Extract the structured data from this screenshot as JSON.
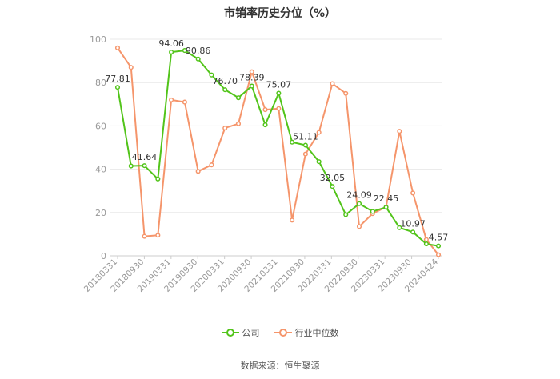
{
  "title": "市销率历史分位（%）",
  "source": "数据来源：恒生聚源",
  "colors": {
    "company": "#52c41a",
    "industry": "#f5956b",
    "grid": "#e8e8e8",
    "axis": "#999999"
  },
  "chart_data": {
    "type": "line",
    "title": "市销率历史分位（%）",
    "ylim": [
      0,
      100
    ],
    "yticks": [
      0,
      20,
      40,
      60,
      80,
      100
    ],
    "grid": true,
    "legend_position": "bottom",
    "x_tick_labels": [
      "20180331",
      "20180930",
      "20190331",
      "20190930",
      "20200331",
      "20200930",
      "20210331",
      "20210930",
      "20220331",
      "20220930",
      "20230331",
      "20230930",
      "20240424"
    ],
    "series": [
      {
        "name": "公司",
        "color": "#52c41a",
        "points": [
          {
            "x": 0,
            "y": 77.81
          },
          {
            "x": 1,
            "y": 41.5
          },
          {
            "x": 2,
            "y": 41.64
          },
          {
            "x": 3,
            "y": 35.5
          },
          {
            "x": 4,
            "y": 94.06
          },
          {
            "x": 5,
            "y": 94.8
          },
          {
            "x": 6,
            "y": 90.86
          },
          {
            "x": 7,
            "y": 83.5
          },
          {
            "x": 8,
            "y": 76.7
          },
          {
            "x": 9,
            "y": 73.0
          },
          {
            "x": 10,
            "y": 78.39
          },
          {
            "x": 11,
            "y": 60.5
          },
          {
            "x": 12,
            "y": 75.07
          },
          {
            "x": 13,
            "y": 52.5
          },
          {
            "x": 14,
            "y": 51.11
          },
          {
            "x": 15,
            "y": 43.5
          },
          {
            "x": 16,
            "y": 32.05
          },
          {
            "x": 17,
            "y": 19.0
          },
          {
            "x": 18,
            "y": 24.09
          },
          {
            "x": 19,
            "y": 20.5
          },
          {
            "x": 20,
            "y": 22.45
          },
          {
            "x": 21,
            "y": 13.0
          },
          {
            "x": 22,
            "y": 10.97
          },
          {
            "x": 23,
            "y": 5.5
          },
          {
            "x": 23.9,
            "y": 4.57
          }
        ],
        "labels": [
          {
            "index": 0,
            "text": "77.81"
          },
          {
            "index": 2,
            "text": "41.64"
          },
          {
            "index": 4,
            "text": "94.06"
          },
          {
            "index": 6,
            "text": "90.86"
          },
          {
            "index": 8,
            "text": "76.70"
          },
          {
            "index": 10,
            "text": "78.39"
          },
          {
            "index": 12,
            "text": "75.07"
          },
          {
            "index": 14,
            "text": "51.11"
          },
          {
            "index": 16,
            "text": "32.05"
          },
          {
            "index": 18,
            "text": "24.09"
          },
          {
            "index": 20,
            "text": "22.45"
          },
          {
            "index": 22,
            "text": "10.97"
          },
          {
            "index": 24,
            "text": "4.57"
          }
        ]
      },
      {
        "name": "行业中位数",
        "color": "#f5956b",
        "points": [
          {
            "x": 0,
            "y": 96.0
          },
          {
            "x": 1,
            "y": 87.0
          },
          {
            "x": 2,
            "y": 9.0
          },
          {
            "x": 3,
            "y": 9.5
          },
          {
            "x": 4,
            "y": 72.0
          },
          {
            "x": 5,
            "y": 71.0
          },
          {
            "x": 6,
            "y": 39.0
          },
          {
            "x": 7,
            "y": 42.0
          },
          {
            "x": 8,
            "y": 59.0
          },
          {
            "x": 9,
            "y": 61.0
          },
          {
            "x": 10,
            "y": 85.0
          },
          {
            "x": 11,
            "y": 67.5
          },
          {
            "x": 12,
            "y": 68.0
          },
          {
            "x": 13,
            "y": 16.5
          },
          {
            "x": 14,
            "y": 47.0
          },
          {
            "x": 15,
            "y": 57.0
          },
          {
            "x": 16,
            "y": 79.5
          },
          {
            "x": 17,
            "y": 75.0
          },
          {
            "x": 18,
            "y": 13.5
          },
          {
            "x": 19,
            "y": 19.5
          },
          {
            "x": 20,
            "y": 22.5
          },
          {
            "x": 21,
            "y": 57.5
          },
          {
            "x": 22,
            "y": 29.0
          },
          {
            "x": 23,
            "y": 7.5
          },
          {
            "x": 23.9,
            "y": 0.5
          }
        ]
      }
    ]
  }
}
